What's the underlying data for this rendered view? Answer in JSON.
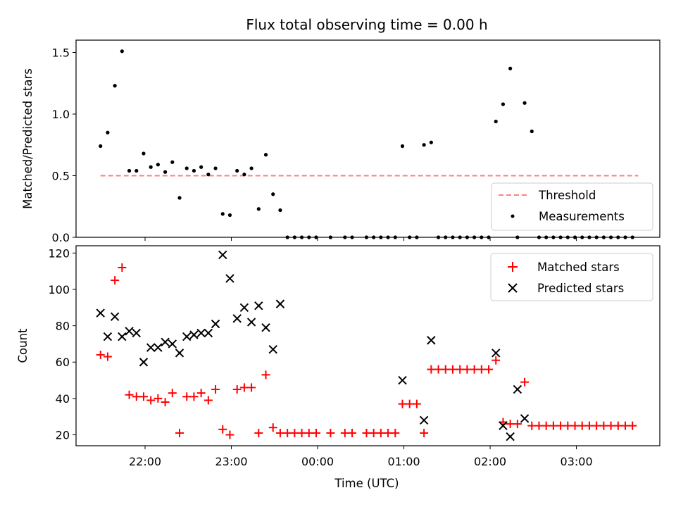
{
  "chart_data": [
    {
      "type": "scatter",
      "title": "Flux total observing time = 0.00 h",
      "xlabel": "",
      "ylabel": "Matched/Predicted stars",
      "xlim": [
        "21:12",
        "03:58"
      ],
      "ylim": [
        0,
        1.6
      ],
      "x_ticks": [
        "22:00",
        "23:00",
        "00:00",
        "01:00",
        "02:00",
        "03:00"
      ],
      "x_tick_labels_shown": false,
      "y_ticks": [
        "0.0",
        "0.5",
        "1.0",
        "1.5"
      ],
      "grid": false,
      "legend_position": "lower-right",
      "threshold": {
        "name": "Threshold",
        "value": 0.5,
        "x_start": "21:29",
        "x_end": "03:43",
        "color": "#ff7f7f"
      },
      "series": [
        {
          "name": "Measurements",
          "color": "#000000",
          "marker": "point",
          "x": [
            "21:29",
            "21:34",
            "21:39",
            "21:44",
            "21:49",
            "21:54",
            "21:59",
            "22:04",
            "22:09",
            "22:14",
            "22:19",
            "22:24",
            "22:29",
            "22:34",
            "22:39",
            "22:44",
            "22:49",
            "22:54",
            "22:59",
            "23:04",
            "23:09",
            "23:14",
            "23:19",
            "23:24",
            "23:29",
            "23:34",
            "23:39",
            "23:44",
            "23:49",
            "23:54",
            "23:59",
            "00:09",
            "00:19",
            "00:24",
            "00:34",
            "00:39",
            "00:44",
            "00:49",
            "00:54",
            "00:59",
            "01:04",
            "01:09",
            "01:14",
            "01:19",
            "01:24",
            "01:29",
            "01:34",
            "01:39",
            "01:44",
            "01:49",
            "01:54",
            "01:59",
            "02:04",
            "02:09",
            "02:14",
            "02:19",
            "02:24",
            "02:29",
            "02:34",
            "02:39",
            "02:44",
            "02:49",
            "02:54",
            "02:59",
            "03:04",
            "03:09",
            "03:14",
            "03:19",
            "03:24",
            "03:29",
            "03:34",
            "03:39"
          ],
          "y": [
            0.74,
            0.85,
            1.23,
            1.51,
            0.54,
            0.54,
            0.68,
            0.57,
            0.59,
            0.53,
            0.61,
            0.32,
            0.56,
            0.54,
            0.57,
            0.51,
            0.56,
            0.19,
            0.18,
            0.54,
            0.51,
            0.56,
            0.23,
            0.67,
            0.35,
            0.22,
            0,
            0,
            0,
            0,
            0,
            0,
            0,
            0,
            0,
            0,
            0,
            0,
            0,
            0.74,
            0,
            0,
            0.75,
            0.77,
            0,
            0,
            0,
            0,
            0,
            0,
            0,
            0,
            0.94,
            1.08,
            1.37,
            0,
            1.09,
            0.86,
            0,
            0,
            0,
            0,
            0,
            0,
            0,
            0,
            0,
            0,
            0,
            0,
            0,
            0
          ]
        }
      ]
    },
    {
      "type": "scatter",
      "title": "",
      "xlabel": "Time (UTC)",
      "ylabel": "Count",
      "xlim": [
        "21:12",
        "03:58"
      ],
      "ylim": [
        14,
        124
      ],
      "x_ticks": [
        "22:00",
        "23:00",
        "00:00",
        "01:00",
        "02:00",
        "03:00"
      ],
      "y_ticks": [
        "20",
        "40",
        "60",
        "80",
        "100",
        "120"
      ],
      "grid": false,
      "legend_position": "upper-right",
      "series": [
        {
          "name": "Matched stars",
          "color": "#ff0000",
          "marker": "plus",
          "x": [
            "21:29",
            "21:34",
            "21:39",
            "21:44",
            "21:49",
            "21:54",
            "21:59",
            "22:04",
            "22:09",
            "22:14",
            "22:19",
            "22:24",
            "22:29",
            "22:34",
            "22:39",
            "22:44",
            "22:49",
            "22:54",
            "22:59",
            "23:04",
            "23:09",
            "23:14",
            "23:19",
            "23:24",
            "23:29",
            "23:34",
            "23:39",
            "23:44",
            "23:49",
            "23:54",
            "23:59",
            "00:09",
            "00:19",
            "00:24",
            "00:34",
            "00:39",
            "00:44",
            "00:49",
            "00:54",
            "00:59",
            "01:04",
            "01:09",
            "01:14",
            "01:19",
            "01:24",
            "01:29",
            "01:34",
            "01:39",
            "01:44",
            "01:49",
            "01:54",
            "01:59",
            "02:04",
            "02:09",
            "02:14",
            "02:19",
            "02:24",
            "02:29",
            "02:34",
            "02:39",
            "02:44",
            "02:49",
            "02:54",
            "02:59",
            "03:04",
            "03:09",
            "03:14",
            "03:19",
            "03:24",
            "03:29",
            "03:34",
            "03:39"
          ],
          "y": [
            64,
            63,
            105,
            112,
            42,
            41,
            41,
            39,
            40,
            38,
            43,
            21,
            41,
            41,
            43,
            39,
            45,
            23,
            20,
            45,
            46,
            46,
            21,
            53,
            24,
            21,
            21,
            21,
            21,
            21,
            21,
            21,
            21,
            21,
            21,
            21,
            21,
            21,
            21,
            37,
            37,
            37,
            21,
            56,
            56,
            56,
            56,
            56,
            56,
            56,
            56,
            56,
            61,
            27,
            26,
            26,
            49,
            25,
            25,
            25,
            25,
            25,
            25,
            25,
            25,
            25,
            25,
            25,
            25,
            25,
            25,
            25
          ]
        },
        {
          "name": "Predicted stars",
          "color": "#000000",
          "marker": "x",
          "x": [
            "21:29",
            "21:34",
            "21:39",
            "21:44",
            "21:49",
            "21:54",
            "21:59",
            "22:04",
            "22:09",
            "22:14",
            "22:19",
            "22:24",
            "22:29",
            "22:34",
            "22:39",
            "22:44",
            "22:49",
            "22:54",
            "22:59",
            "23:04",
            "23:09",
            "23:14",
            "23:19",
            "23:24",
            "23:29",
            "23:34",
            "00:59",
            "01:14",
            "01:19",
            "02:04",
            "02:09",
            "02:14",
            "02:19",
            "02:24"
          ],
          "y": [
            87,
            74,
            85,
            74,
            77,
            76,
            60,
            68,
            68,
            71,
            70,
            65,
            74,
            75,
            76,
            76,
            81,
            119,
            106,
            84,
            90,
            82,
            91,
            79,
            67,
            92,
            50,
            28,
            72,
            65,
            25,
            19,
            45,
            29
          ]
        }
      ]
    }
  ]
}
